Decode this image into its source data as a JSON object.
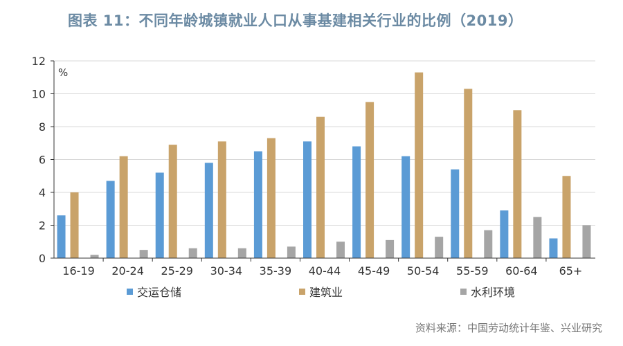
{
  "title": "图表 11：不同年龄城镇就业人口从事基建相关行业的比例（2019）",
  "source": "资料来源：中国劳动统计年鉴、兴业研究",
  "chart_data": {
    "type": "bar",
    "unit_label": "%",
    "categories": [
      "16-19",
      "20-24",
      "25-29",
      "30-34",
      "35-39",
      "40-44",
      "45-49",
      "50-54",
      "55-59",
      "60-64",
      "65+"
    ],
    "series": [
      {
        "name": "交运仓储",
        "color": "#5b9bd5",
        "values": [
          2.6,
          4.7,
          5.2,
          5.8,
          6.5,
          7.1,
          6.8,
          6.2,
          5.4,
          2.9,
          1.2
        ]
      },
      {
        "name": "建筑业",
        "color": "#c9a36a",
        "values": [
          4.0,
          6.2,
          6.9,
          7.1,
          7.3,
          8.6,
          9.5,
          11.3,
          10.3,
          9.0,
          5.0
        ]
      },
      {
        "name": "水利环境",
        "color": "#a5a5a5",
        "values": [
          0.2,
          0.5,
          0.6,
          0.6,
          0.7,
          1.0,
          1.1,
          1.3,
          1.7,
          2.5,
          2.0
        ]
      }
    ],
    "ylim": [
      0,
      12
    ],
    "yticks": [
      0,
      2,
      4,
      6,
      8,
      10,
      12
    ],
    "grid": true,
    "legend_position": "bottom"
  }
}
